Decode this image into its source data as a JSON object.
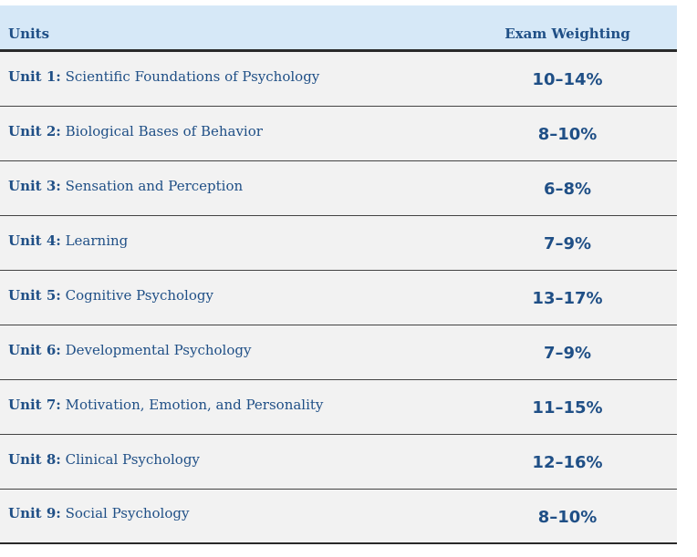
{
  "header": {
    "units": "Units",
    "weighting": "Exam Weighting"
  },
  "rows": [
    {
      "unit": "Unit 1:",
      "title": "Scientific Foundations of Psychology",
      "weight": "10–14%"
    },
    {
      "unit": "Unit 2:",
      "title": "Biological Bases of Behavior",
      "weight": "8–10%"
    },
    {
      "unit": "Unit 3:",
      "title": "Sensation and Perception",
      "weight": "6–8%"
    },
    {
      "unit": "Unit 4:",
      "title": "Learning",
      "weight": "7–9%"
    },
    {
      "unit": "Unit 5:",
      "title": "Cognitive Psychology",
      "weight": "13–17%"
    },
    {
      "unit": "Unit 6:",
      "title": "Developmental Psychology",
      "weight": "7–9%"
    },
    {
      "unit": "Unit 7:",
      "title": "Motivation, Emotion, and Personality",
      "weight": "11–15%"
    },
    {
      "unit": "Unit 8:",
      "title": "Clinical Psychology",
      "weight": "12–16%"
    },
    {
      "unit": "Unit 9:",
      "title": "Social Psychology",
      "weight": "8–10%"
    }
  ],
  "colors": {
    "header_bg": "#d6e8f7",
    "text": "#1f4f86",
    "row_bg": "#f2f2f2"
  }
}
